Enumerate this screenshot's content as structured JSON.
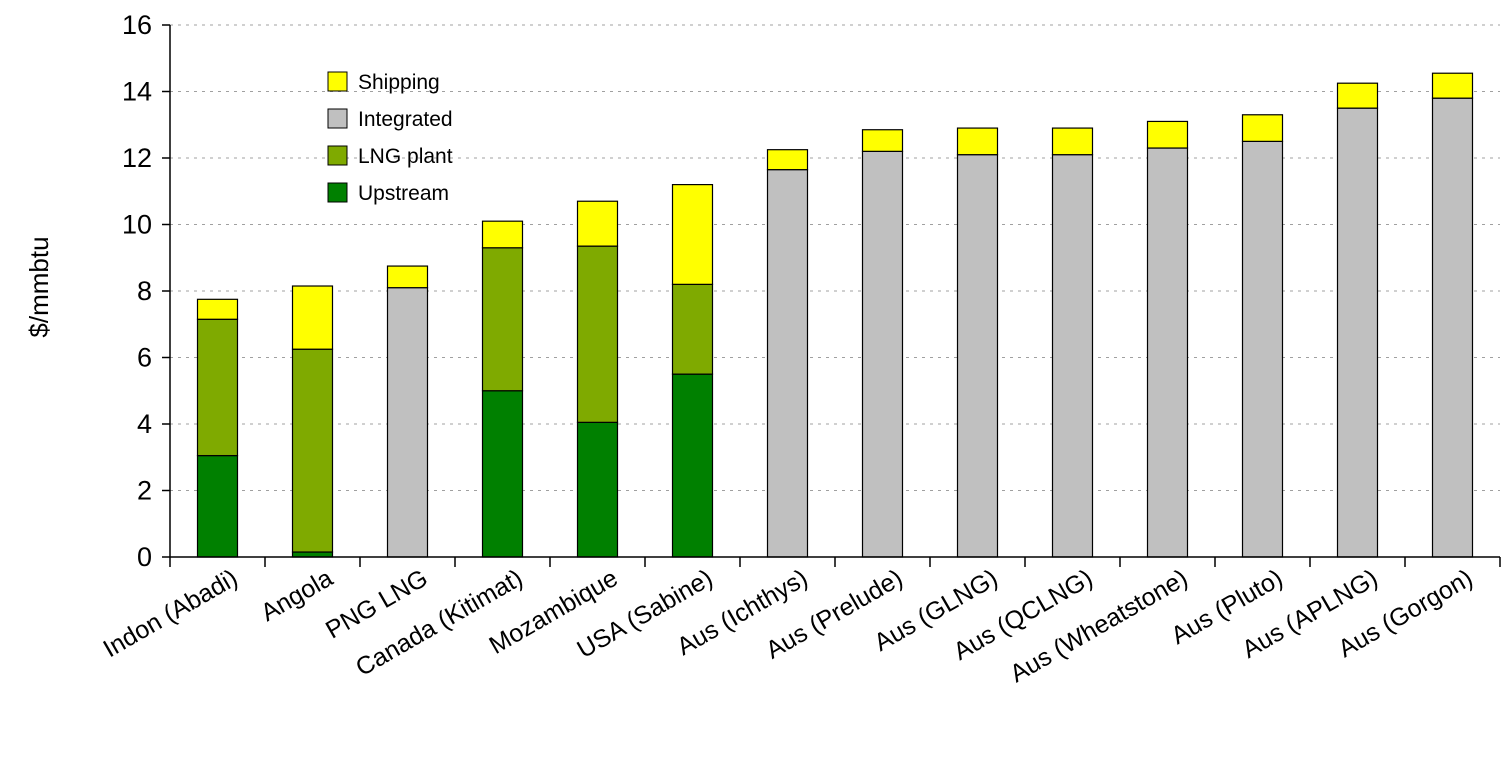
{
  "chart_data": {
    "type": "bar",
    "stacked": true,
    "title": "",
    "xlabel": "",
    "ylabel": "$/mmbtu",
    "ylim": [
      0,
      16
    ],
    "yticks": [
      0,
      2,
      4,
      6,
      8,
      10,
      12,
      14,
      16
    ],
    "grid": true,
    "legend_position": "top-left",
    "categories": [
      "Indon (Abadi)",
      "Angola",
      "PNG LNG",
      "Canada (Kitimat)",
      "Mozambique",
      "USA (Sabine)",
      "Aus (Ichthys)",
      "Aus (Prelude)",
      "Aus (GLNG)",
      "Aus (QCLNG)",
      "Aus (Wheatstone)",
      "Aus (Pluto)",
      "Aus (APLNG)",
      "Aus (Gorgon)"
    ],
    "series": [
      {
        "name": "Upstream",
        "color": "#008000",
        "values": [
          3.05,
          0.15,
          0,
          5.0,
          4.05,
          5.5,
          0,
          0,
          0,
          0,
          0,
          0,
          0,
          0
        ]
      },
      {
        "name": "LNG plant",
        "color": "#7faa00",
        "values": [
          4.1,
          6.1,
          0,
          4.3,
          5.3,
          2.7,
          0,
          0,
          0,
          0,
          0,
          0,
          0,
          0
        ]
      },
      {
        "name": "Integrated",
        "color": "#c0c0c0",
        "values": [
          0,
          0,
          8.1,
          0,
          0,
          0,
          11.65,
          12.2,
          12.1,
          12.1,
          12.3,
          12.5,
          13.5,
          13.8
        ]
      },
      {
        "name": "Shipping",
        "color": "#ffff00",
        "values": [
          0.6,
          1.9,
          0.65,
          0.8,
          1.35,
          3.0,
          0.6,
          0.65,
          0.8,
          0.8,
          0.8,
          0.8,
          0.75,
          0.75
        ]
      }
    ],
    "legend_order": [
      "Shipping",
      "Integrated",
      "LNG plant",
      "Upstream"
    ]
  }
}
